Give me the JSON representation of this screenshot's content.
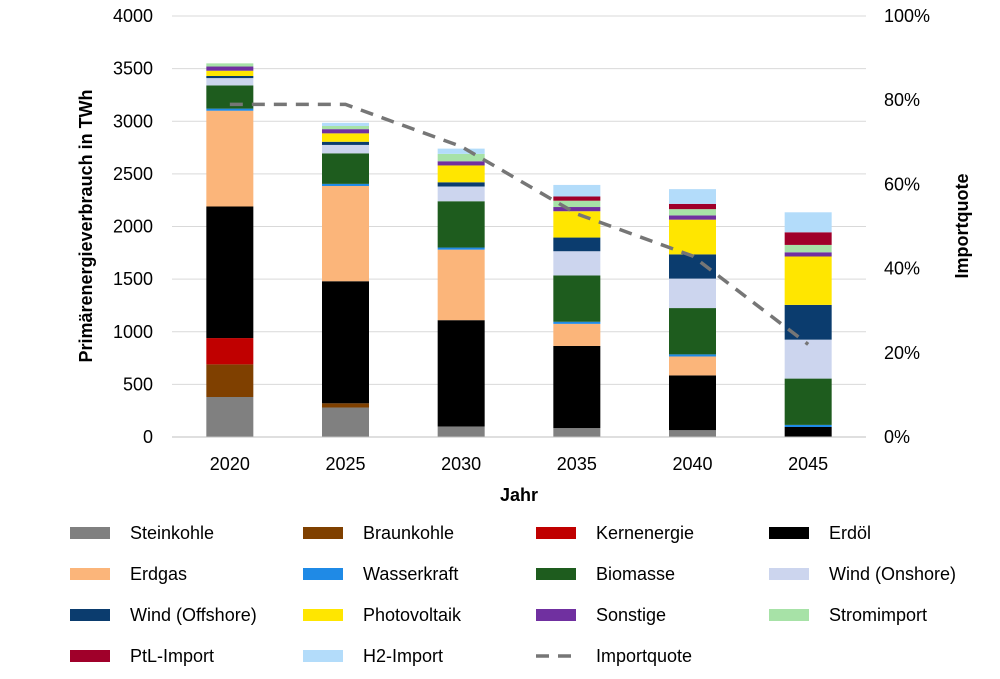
{
  "chart_data": {
    "type": "bar",
    "stacked": true,
    "title": "",
    "xlabel": "Jahr",
    "ylabel": "Primärenergieverbrauch in TWh",
    "y2label": "Importquote",
    "ylim": [
      0,
      4000
    ],
    "yticks": [
      0,
      500,
      1000,
      1500,
      2000,
      2500,
      3000,
      3500,
      4000
    ],
    "y2lim": [
      0,
      100
    ],
    "y2ticks": [
      "0%",
      "20%",
      "40%",
      "60%",
      "80%",
      "100%"
    ],
    "y2tick_values": [
      0,
      20,
      40,
      60,
      80,
      100
    ],
    "grid": true,
    "legend_position": "bottom",
    "categories": [
      "2020",
      "2025",
      "2030",
      "2035",
      "2040",
      "2045"
    ],
    "series": [
      {
        "name": "Steinkohle",
        "color": "#808080",
        "values": [
          380,
          280,
          100,
          85,
          65,
          0
        ]
      },
      {
        "name": "Braunkohle",
        "color": "#7f4000",
        "values": [
          310,
          40,
          0,
          0,
          0,
          0
        ]
      },
      {
        "name": "Kernenergie",
        "color": "#c00000",
        "values": [
          250,
          0,
          0,
          0,
          0,
          0
        ]
      },
      {
        "name": "Erdöl",
        "color": "#000000",
        "values": [
          1250,
          1160,
          1010,
          780,
          520,
          95
        ]
      },
      {
        "name": "Erdgas",
        "color": "#fbb57a",
        "values": [
          910,
          905,
          670,
          210,
          180,
          0
        ]
      },
      {
        "name": "Wasserkraft",
        "color": "#1f8ae6",
        "values": [
          20,
          20,
          20,
          20,
          20,
          20
        ]
      },
      {
        "name": "Biomasse",
        "color": "#1e5c1e",
        "values": [
          220,
          290,
          440,
          440,
          440,
          440
        ]
      },
      {
        "name": "Wind (Onshore)",
        "color": "#ccd5ee",
        "values": [
          70,
          80,
          140,
          230,
          280,
          370
        ]
      },
      {
        "name": "Wind (Offshore)",
        "color": "#0b3c6e",
        "values": [
          20,
          30,
          40,
          130,
          230,
          330
        ]
      },
      {
        "name": "Photovoltaik",
        "color": "#ffe600",
        "values": [
          50,
          80,
          160,
          250,
          330,
          460
        ]
      },
      {
        "name": "Sonstige",
        "color": "#7030a0",
        "values": [
          40,
          40,
          40,
          40,
          40,
          40
        ]
      },
      {
        "name": "Stromimport",
        "color": "#a7e2a7",
        "values": [
          30,
          30,
          70,
          60,
          60,
          70
        ]
      },
      {
        "name": "PtL-Import",
        "color": "#a0002a",
        "values": [
          0,
          0,
          0,
          40,
          50,
          120
        ]
      },
      {
        "name": "H2-Import",
        "color": "#b3dcfa",
        "values": [
          0,
          30,
          50,
          110,
          140,
          190
        ]
      }
    ],
    "line_series": {
      "name": "Importquote",
      "color": "#767676",
      "style": "dashed",
      "axis": "right",
      "values": [
        79,
        79,
        69,
        53,
        43,
        22
      ]
    },
    "legend_order": [
      "Steinkohle",
      "Braunkohle",
      "Kernenergie",
      "Erdöl",
      "Erdgas",
      "Wasserkraft",
      "Biomasse",
      "Wind (Onshore)",
      "Wind (Offshore)",
      "Photovoltaik",
      "Sonstige",
      "Stromimport",
      "PtL-Import",
      "H2-Import",
      "Importquote"
    ]
  }
}
